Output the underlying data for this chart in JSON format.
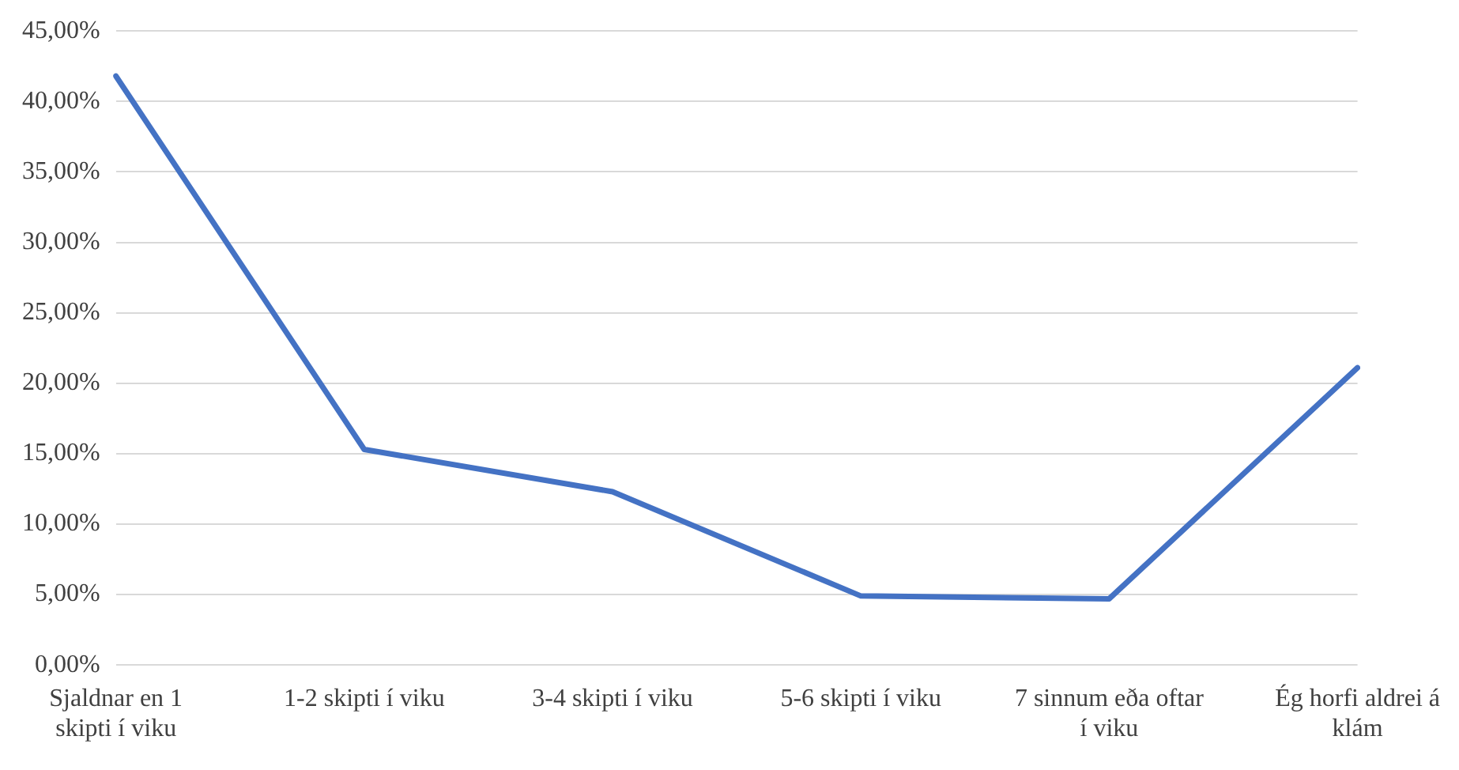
{
  "chart_data": {
    "type": "line",
    "categories": [
      "Sjaldnar en 1 skipti í viku",
      "1-2 skipti í viku",
      "3-4 skipti í viku",
      "5-6 skipti í viku",
      "7 sinnum eða oftar í viku",
      "Ég horfi aldrei á klám"
    ],
    "series": [
      {
        "color": "#4472c4",
        "values": [
          41.8,
          15.3,
          12.3,
          4.9,
          4.7,
          21.1
        ]
      }
    ],
    "ylim": [
      0,
      45
    ],
    "yticks": [
      {
        "value": 0,
        "label": "0,00%"
      },
      {
        "value": 5,
        "label": "5,00%"
      },
      {
        "value": 10,
        "label": "10,00%"
      },
      {
        "value": 15,
        "label": "15,00%"
      },
      {
        "value": 20,
        "label": "20,00%"
      },
      {
        "value": 25,
        "label": "25,00%"
      },
      {
        "value": 30,
        "label": "30,00%"
      },
      {
        "value": 35,
        "label": "35,00%"
      },
      {
        "value": 40,
        "label": "40,00%"
      },
      {
        "value": 45,
        "label": "45,00%"
      }
    ],
    "grid": "y",
    "legend": false,
    "marker": "none",
    "line_style": "solid"
  }
}
